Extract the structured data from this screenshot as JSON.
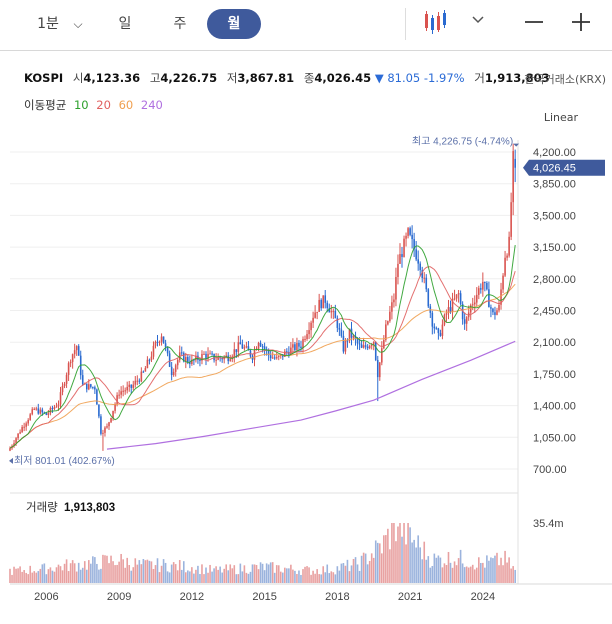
{
  "toolbar": {
    "interval_1min": "1분",
    "chevron": "⌵",
    "day": "일",
    "week": "주",
    "month": "월",
    "chart_type_icon": "candlestick-icon",
    "minimize_icon": "minus-icon",
    "add_icon": "plus-icon"
  },
  "header": {
    "symbol": "KOSPI",
    "open_label": "시",
    "open": "4,123.36",
    "high_label": "고",
    "high": "4,226.75",
    "low_label": "저",
    "low": "3,867.81",
    "close_label": "종",
    "close": "4,026.45",
    "change": "▼ 81.05",
    "change_pct": "-1.97%",
    "volume_label": "거",
    "volume": "1,913,803",
    "exchange": "한국거래소(KRX)"
  },
  "moving_average": {
    "label": "이동평균",
    "periods": [
      "10",
      "20",
      "60",
      "240"
    ],
    "colors": [
      "#2ca02c",
      "#e06060",
      "#f0a050",
      "#b070e0"
    ]
  },
  "scale_mode": "Linear",
  "colors": {
    "up": "#d9534f",
    "down": "#2a6ad0",
    "price_tag": "#3f5a9c",
    "volume_up": "#e8a0a0",
    "volume_down": "#9bb3dd"
  },
  "chart_data": {
    "type": "candlestick",
    "title": "KOSPI",
    "period": "monthly",
    "x_tick_labels": [
      "2006",
      "2009",
      "2012",
      "2015",
      "2018",
      "2021",
      "2024"
    ],
    "y_tick_labels": [
      "4,200.00",
      "3,850.00",
      "3,500.00",
      "3,150.00",
      "2,800.00",
      "2,450.00",
      "2,100.00",
      "1,750.00",
      "1,400.00",
      "1,050.00",
      "700.00"
    ],
    "ylim": [
      700,
      4200
    ],
    "current_price": "4,026.45",
    "max_annotation": "최고 4,226.75 (-4.74%)",
    "min_annotation": "최저 801.01 (402.67%)",
    "close_series": [
      {
        "date": "2005-01",
        "close": 930
      },
      {
        "date": "2005-07",
        "close": 1160
      },
      {
        "date": "2006-01",
        "close": 1360
      },
      {
        "date": "2006-07",
        "close": 1300
      },
      {
        "date": "2007-01",
        "close": 1430
      },
      {
        "date": "2007-07",
        "close": 1930
      },
      {
        "date": "2007-10",
        "close": 2060
      },
      {
        "date": "2008-01",
        "close": 1620
      },
      {
        "date": "2008-07",
        "close": 1600
      },
      {
        "date": "2008-10",
        "close": 1110
      },
      {
        "date": "2009-01",
        "close": 1160
      },
      {
        "date": "2009-07",
        "close": 1550
      },
      {
        "date": "2010-01",
        "close": 1600
      },
      {
        "date": "2010-07",
        "close": 1760
      },
      {
        "date": "2011-01",
        "close": 2070
      },
      {
        "date": "2011-04",
        "close": 2190
      },
      {
        "date": "2011-09",
        "close": 1770
      },
      {
        "date": "2012-01",
        "close": 1950
      },
      {
        "date": "2012-07",
        "close": 1880
      },
      {
        "date": "2013-01",
        "close": 1960
      },
      {
        "date": "2013-07",
        "close": 1920
      },
      {
        "date": "2014-01",
        "close": 1940
      },
      {
        "date": "2014-07",
        "close": 2070
      },
      {
        "date": "2015-01",
        "close": 1950
      },
      {
        "date": "2015-04",
        "close": 2130
      },
      {
        "date": "2015-09",
        "close": 1960
      },
      {
        "date": "2016-01",
        "close": 1910
      },
      {
        "date": "2016-07",
        "close": 2010
      },
      {
        "date": "2017-01",
        "close": 2070
      },
      {
        "date": "2017-07",
        "close": 2400
      },
      {
        "date": "2017-10",
        "close": 2520
      },
      {
        "date": "2018-01",
        "close": 2570
      },
      {
        "date": "2018-07",
        "close": 2300
      },
      {
        "date": "2018-10",
        "close": 2030
      },
      {
        "date": "2019-01",
        "close": 2200
      },
      {
        "date": "2019-07",
        "close": 2020
      },
      {
        "date": "2020-01",
        "close": 2120
      },
      {
        "date": "2020-03",
        "close": 1750
      },
      {
        "date": "2020-07",
        "close": 2250
      },
      {
        "date": "2020-11",
        "close": 2590
      },
      {
        "date": "2021-01",
        "close": 2980
      },
      {
        "date": "2021-06",
        "close": 3290
      },
      {
        "date": "2021-12",
        "close": 2970
      },
      {
        "date": "2022-06",
        "close": 2330
      },
      {
        "date": "2022-09",
        "close": 2150
      },
      {
        "date": "2023-01",
        "close": 2420
      },
      {
        "date": "2023-07",
        "close": 2630
      },
      {
        "date": "2023-10",
        "close": 2280
      },
      {
        "date": "2024-01",
        "close": 2500
      },
      {
        "date": "2024-07",
        "close": 2770
      },
      {
        "date": "2024-12",
        "close": 2400
      },
      {
        "date": "2025-03",
        "close": 2480
      },
      {
        "date": "2025-06",
        "close": 3070
      },
      {
        "date": "2025-08",
        "close": 3190
      },
      {
        "date": "2025-10",
        "close": 4110
      },
      {
        "date": "2025-11",
        "close": 4026
      }
    ],
    "ma240_series": [
      {
        "date": "2009-01",
        "value": 920
      },
      {
        "date": "2011-01",
        "value": 980
      },
      {
        "date": "2013-01",
        "value": 1060
      },
      {
        "date": "2015-01",
        "value": 1150
      },
      {
        "date": "2017-01",
        "value": 1240
      },
      {
        "date": "2018-06",
        "value": 1340
      },
      {
        "date": "2020-01",
        "value": 1460
      },
      {
        "date": "2022-01",
        "value": 1690
      },
      {
        "date": "2024-01",
        "value": 1900
      },
      {
        "date": "2025-11",
        "value": 2110
      }
    ],
    "volume": {
      "label": "거래량",
      "current": "1,913,803",
      "max_label": "35.4m",
      "bars": [
        {
          "date": "2005-06",
          "value": 7
        },
        {
          "date": "2006-06",
          "value": 8
        },
        {
          "date": "2007-06",
          "value": 10
        },
        {
          "date": "2008-06",
          "value": 11
        },
        {
          "date": "2009-06",
          "value": 13
        },
        {
          "date": "2010-06",
          "value": 10
        },
        {
          "date": "2011-06",
          "value": 10
        },
        {
          "date": "2012-06",
          "value": 9
        },
        {
          "date": "2013-06",
          "value": 7
        },
        {
          "date": "2014-06",
          "value": 8
        },
        {
          "date": "2015-06",
          "value": 9
        },
        {
          "date": "2016-06",
          "value": 8
        },
        {
          "date": "2017-06",
          "value": 7
        },
        {
          "date": "2018-06",
          "value": 8
        },
        {
          "date": "2019-06",
          "value": 11
        },
        {
          "date": "2020-06",
          "value": 22
        },
        {
          "date": "2021-01",
          "value": 35
        },
        {
          "date": "2021-06",
          "value": 27
        },
        {
          "date": "2022-06",
          "value": 13
        },
        {
          "date": "2023-06",
          "value": 14
        },
        {
          "date": "2024-06",
          "value": 11
        },
        {
          "date": "2025-06",
          "value": 13
        },
        {
          "date": "2025-11",
          "value": 7
        }
      ]
    }
  }
}
